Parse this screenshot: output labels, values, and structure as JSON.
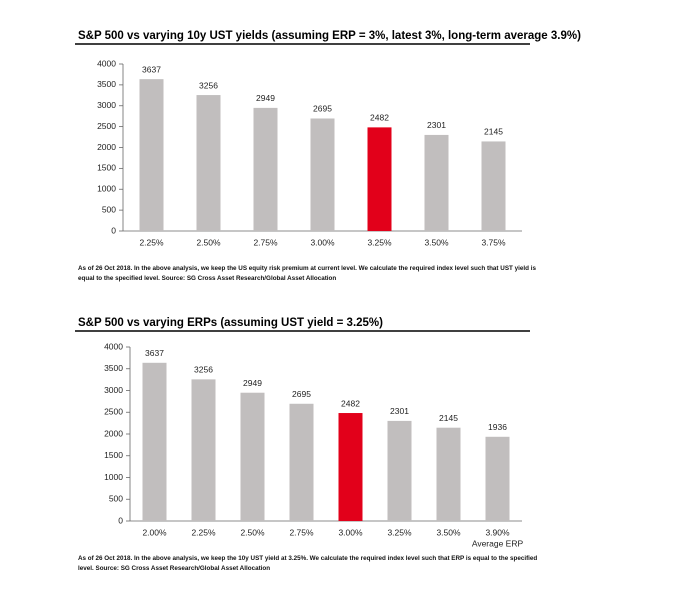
{
  "chart_data": [
    {
      "type": "bar",
      "title": "S&P 500 vs varying 10y UST yields (assuming ERP = 3%, latest 3%, long-term average 3.9%)",
      "categories": [
        "2.25%",
        "2.50%",
        "2.75%",
        "3.00%",
        "3.25%",
        "3.50%",
        "3.75%"
      ],
      "values": [
        3637,
        3256,
        2949,
        2695,
        2482,
        2301,
        2145
      ],
      "colors": [
        "#c1bebe",
        "#c1bebe",
        "#c1bebe",
        "#c1bebe",
        "#e2001a",
        "#c1bebe",
        "#c1bebe"
      ],
      "ylim": [
        0,
        4000
      ],
      "yticks": [
        0,
        500,
        1000,
        1500,
        2000,
        2500,
        3000,
        3500,
        4000
      ],
      "note": "As of 26 Oct 2018. In the above analysis, we keep the US equity risk premium at current level. We calculate the required index level such that UST yield is equal to the specified level. Source: SG Cross Asset Research/Global Asset Allocation"
    },
    {
      "type": "bar",
      "title": "S&P 500 vs varying ERPs (assuming UST yield = 3.25%)",
      "categories": [
        "2.00%",
        "2.25%",
        "2.50%",
        "2.75%",
        "3.00%",
        "3.25%",
        "3.50%",
        "3.90%"
      ],
      "values": [
        3637,
        3256,
        2949,
        2695,
        2482,
        2301,
        2145,
        1936
      ],
      "colors": [
        "#c1bebe",
        "#c1bebe",
        "#c1bebe",
        "#c1bebe",
        "#e2001a",
        "#c1bebe",
        "#c1bebe",
        "#c1bebe"
      ],
      "annotation": "Average ERP",
      "ylim": [
        0,
        4000
      ],
      "yticks": [
        0,
        500,
        1000,
        1500,
        2000,
        2500,
        3000,
        3500,
        4000
      ],
      "note": "As of 26 Oct 2018. In the above analysis, we keep the 10y UST yield at 3.25%. We calculate the required index level such that ERP is equal to the specified level. Source: SG Cross Asset Research/Global Asset Allocation"
    }
  ]
}
